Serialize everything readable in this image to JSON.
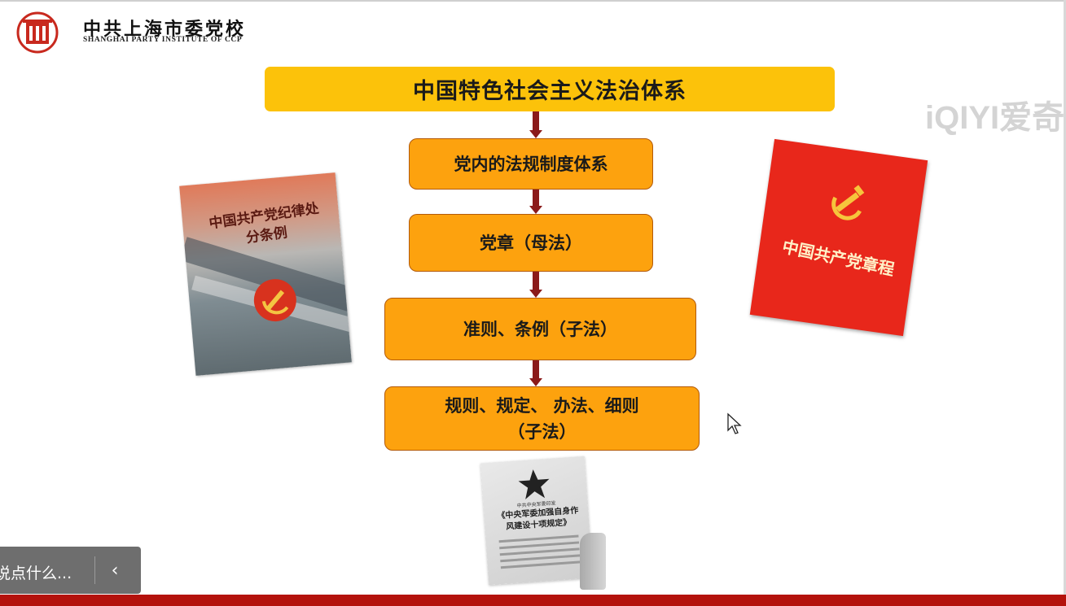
{
  "header": {
    "institute_cn": "中共上海市委党校",
    "institute_en": "SHANGHAI PARTY INSTITUTE OF CCP"
  },
  "watermark": "iQIYI爱奇",
  "flow": {
    "top": "中国特色社会主义法治体系",
    "nodes": [
      {
        "line1": "党内的法规制度体系",
        "line2": ""
      },
      {
        "line1": "党章（母法）",
        "line2": ""
      },
      {
        "line1": "准则、条例（子法）",
        "line2": ""
      },
      {
        "line1": "规则、规定、 办法、细则",
        "line2": "（子法）"
      }
    ]
  },
  "books": {
    "left_title": "中国共产党纪律处分条例",
    "right_title": "中国共产党章程",
    "doc_small": "中共中央军委印发",
    "doc_title": "《中央军委加强自身作风建设十项规定》"
  },
  "comment": {
    "placeholder": "说点什么...",
    "collapse_icon": "chevron-left-icon"
  },
  "colors": {
    "top_box": "#fcc20a",
    "node": "#fda20e",
    "arrow": "#8b1a1a",
    "bottom_bar": "#b4120c"
  }
}
